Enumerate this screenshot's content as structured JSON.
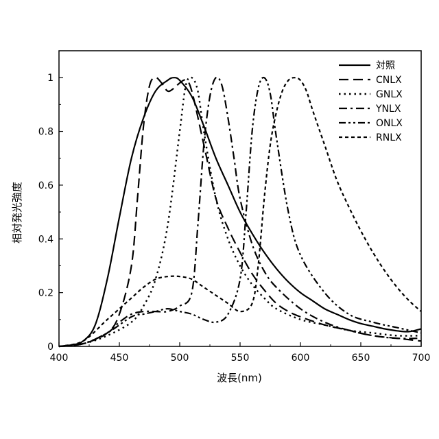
{
  "chart_data": {
    "type": "line",
    "title": "",
    "xlabel": "波長(nm)",
    "ylabel": "相対発光強度",
    "xlim": [
      400,
      700
    ],
    "ylim": [
      0,
      1.1
    ],
    "xticks": [
      400,
      450,
      500,
      550,
      600,
      650,
      700
    ],
    "yticks": [
      0,
      0.2,
      0.4,
      0.6,
      0.8,
      1
    ],
    "xtick_labels": [
      "400",
      "450",
      "500",
      "550",
      "600",
      "650",
      "700"
    ],
    "ytick_labels": [
      "0",
      "0.2",
      "0.4",
      "0.6",
      "0.8",
      "1"
    ],
    "grid": false,
    "legend_position": "top-right",
    "series": [
      {
        "name": "対照",
        "style": "solid",
        "x": [
          400,
          410,
          420,
          430,
          440,
          450,
          460,
          470,
          480,
          490,
          495,
          500,
          510,
          520,
          530,
          540,
          550,
          560,
          570,
          580,
          590,
          600,
          610,
          620,
          630,
          640,
          650,
          660,
          670,
          680,
          690,
          700
        ],
        "y": [
          0,
          0.005,
          0.02,
          0.08,
          0.25,
          0.48,
          0.7,
          0.85,
          0.95,
          0.99,
          1.0,
          0.99,
          0.93,
          0.82,
          0.7,
          0.6,
          0.5,
          0.42,
          0.35,
          0.29,
          0.24,
          0.2,
          0.17,
          0.14,
          0.12,
          0.1,
          0.085,
          0.075,
          0.065,
          0.058,
          0.055,
          0.065
        ]
      },
      {
        "name": "CNLX",
        "style": "dash",
        "x": [
          400,
          420,
          440,
          450,
          460,
          465,
          470,
          475,
          480,
          485,
          490,
          495,
          500,
          505,
          510,
          520,
          530,
          540,
          550,
          560,
          570,
          580,
          590,
          600,
          620,
          640,
          660,
          680,
          700
        ],
        "y": [
          0,
          0.01,
          0.05,
          0.12,
          0.3,
          0.55,
          0.82,
          0.97,
          1.0,
          0.98,
          0.95,
          0.96,
          0.98,
          0.99,
          0.95,
          0.75,
          0.55,
          0.44,
          0.35,
          0.27,
          0.21,
          0.16,
          0.13,
          0.11,
          0.08,
          0.06,
          0.04,
          0.03,
          0.02
        ]
      },
      {
        "name": "GNLX",
        "style": "dot",
        "x": [
          400,
          420,
          440,
          460,
          470,
          480,
          490,
          500,
          505,
          510,
          515,
          520,
          530,
          540,
          550,
          560,
          570,
          580,
          600,
          620,
          640,
          660,
          680,
          700
        ],
        "y": [
          0,
          0.01,
          0.04,
          0.09,
          0.15,
          0.25,
          0.45,
          0.8,
          0.97,
          1.0,
          0.95,
          0.8,
          0.55,
          0.4,
          0.3,
          0.23,
          0.18,
          0.14,
          0.1,
          0.08,
          0.06,
          0.05,
          0.04,
          0.04
        ]
      },
      {
        "name": "YNLX",
        "style": "dashdot",
        "x": [
          400,
          420,
          440,
          450,
          460,
          470,
          480,
          490,
          500,
          510,
          515,
          520,
          525,
          530,
          535,
          540,
          545,
          550,
          560,
          570,
          580,
          600,
          620,
          640,
          660,
          680,
          700
        ],
        "y": [
          0,
          0.01,
          0.05,
          0.09,
          0.12,
          0.13,
          0.13,
          0.13,
          0.15,
          0.2,
          0.45,
          0.75,
          0.93,
          1.0,
          0.97,
          0.85,
          0.7,
          0.55,
          0.38,
          0.28,
          0.22,
          0.14,
          0.09,
          0.06,
          0.04,
          0.03,
          0.03
        ]
      },
      {
        "name": "ONLX",
        "style": "dashdotdot",
        "x": [
          400,
          420,
          440,
          460,
          470,
          480,
          490,
          500,
          510,
          520,
          530,
          540,
          550,
          555,
          560,
          565,
          570,
          575,
          580,
          590,
          600,
          620,
          640,
          660,
          680,
          700
        ],
        "y": [
          0,
          0.01,
          0.05,
          0.11,
          0.12,
          0.13,
          0.14,
          0.13,
          0.12,
          0.1,
          0.09,
          0.12,
          0.25,
          0.5,
          0.8,
          0.96,
          1.0,
          0.94,
          0.78,
          0.5,
          0.34,
          0.2,
          0.12,
          0.09,
          0.07,
          0.05
        ]
      },
      {
        "name": "RNLX",
        "style": "shortdash",
        "x": [
          400,
          420,
          440,
          460,
          470,
          480,
          490,
          500,
          510,
          520,
          530,
          540,
          550,
          560,
          565,
          570,
          575,
          580,
          585,
          590,
          595,
          600,
          605,
          610,
          620,
          630,
          640,
          650,
          660,
          670,
          680,
          690,
          700
        ],
        "y": [
          0,
          0.02,
          0.1,
          0.18,
          0.22,
          0.25,
          0.26,
          0.26,
          0.25,
          0.22,
          0.19,
          0.16,
          0.13,
          0.16,
          0.3,
          0.55,
          0.75,
          0.87,
          0.95,
          0.99,
          1.0,
          0.99,
          0.95,
          0.88,
          0.75,
          0.62,
          0.52,
          0.43,
          0.35,
          0.28,
          0.22,
          0.17,
          0.13
        ]
      }
    ]
  }
}
